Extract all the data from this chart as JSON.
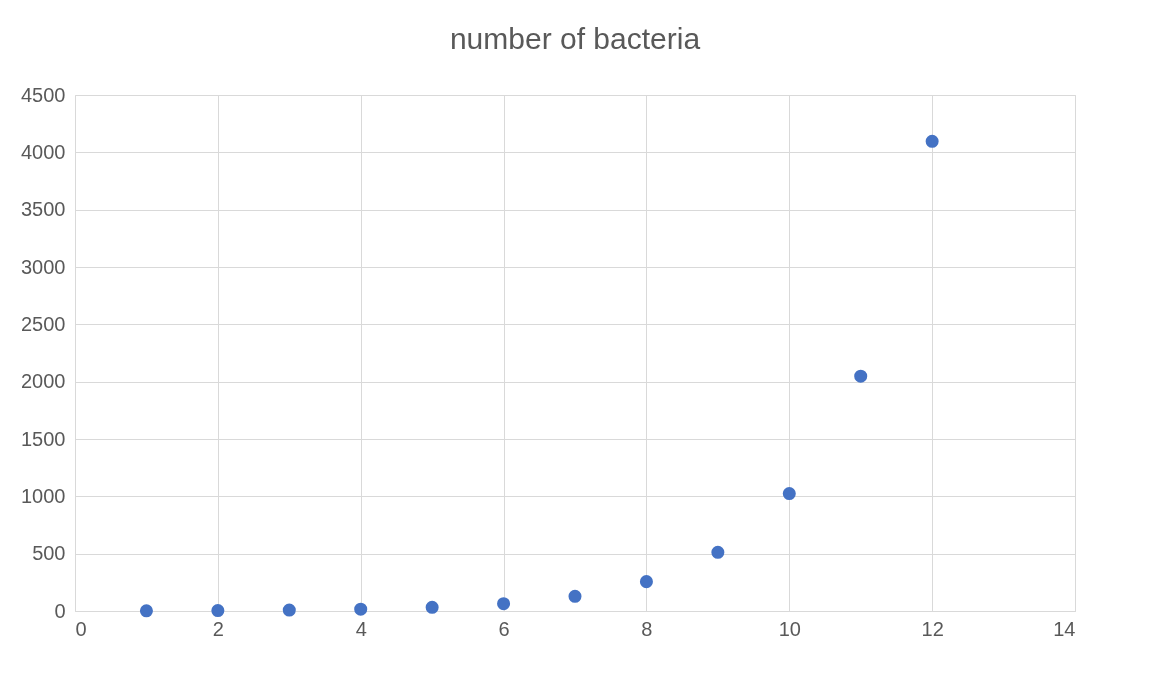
{
  "chart_data": {
    "type": "scatter",
    "title": "number of bacteria",
    "x": [
      1,
      2,
      3,
      4,
      5,
      6,
      7,
      8,
      9,
      10,
      11,
      12
    ],
    "series": [
      {
        "color": "#4472c4",
        "values": [
          2,
          4,
          8,
          16,
          32,
          64,
          128,
          256,
          512,
          1024,
          2048,
          4096
        ]
      }
    ],
    "xlim": [
      0,
      14
    ],
    "xticks": [
      0,
      2,
      4,
      6,
      8,
      10,
      12,
      14
    ],
    "ylim": [
      0,
      4500
    ],
    "yticks": [
      0,
      500,
      1000,
      1500,
      2000,
      2500,
      3000,
      3500,
      4000,
      4500
    ],
    "grid": true,
    "marker": "circle",
    "legend": false
  }
}
